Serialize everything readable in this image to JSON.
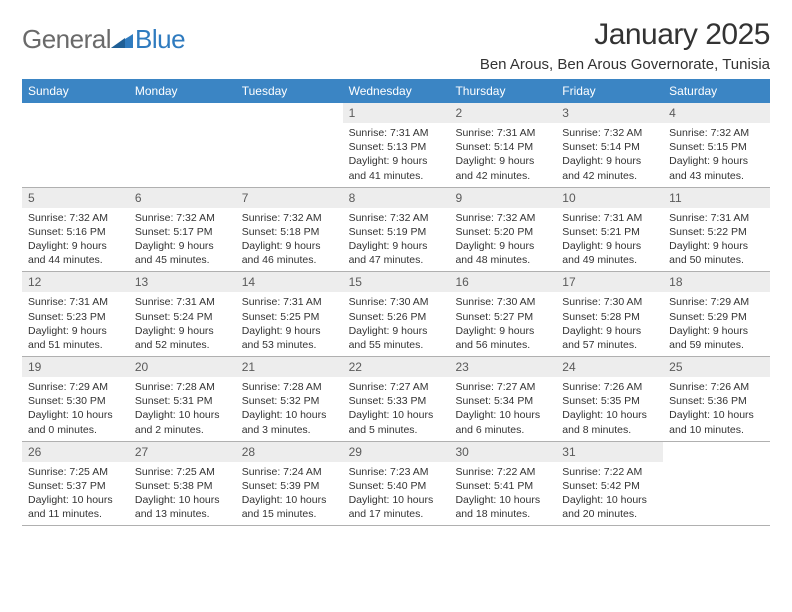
{
  "brand": {
    "part1": "General",
    "part2": "Blue"
  },
  "title": "January 2025",
  "location": "Ben Arous, Ben Arous Governorate, Tunisia",
  "colors": {
    "header_bg": "#3b85c4",
    "header_text": "#ffffff",
    "daynum_bg": "#ededed",
    "daynum_text": "#5a5a5a",
    "body_text": "#333333",
    "rule": "#b0b0b0",
    "logo_gray": "#6a6a6a",
    "logo_blue": "#2f7bbf",
    "page_bg": "#ffffff"
  },
  "typography": {
    "title_fontsize": 30,
    "location_fontsize": 15,
    "dow_fontsize": 12,
    "daynum_fontsize": 12,
    "detail_fontsize": 10.5
  },
  "dow": [
    "Sunday",
    "Monday",
    "Tuesday",
    "Wednesday",
    "Thursday",
    "Friday",
    "Saturday"
  ],
  "weeks": [
    [
      null,
      null,
      null,
      {
        "n": "1",
        "sunrise": "7:31 AM",
        "sunset": "5:13 PM",
        "daylight": "9 hours and 41 minutes."
      },
      {
        "n": "2",
        "sunrise": "7:31 AM",
        "sunset": "5:14 PM",
        "daylight": "9 hours and 42 minutes."
      },
      {
        "n": "3",
        "sunrise": "7:32 AM",
        "sunset": "5:14 PM",
        "daylight": "9 hours and 42 minutes."
      },
      {
        "n": "4",
        "sunrise": "7:32 AM",
        "sunset": "5:15 PM",
        "daylight": "9 hours and 43 minutes."
      }
    ],
    [
      {
        "n": "5",
        "sunrise": "7:32 AM",
        "sunset": "5:16 PM",
        "daylight": "9 hours and 44 minutes."
      },
      {
        "n": "6",
        "sunrise": "7:32 AM",
        "sunset": "5:17 PM",
        "daylight": "9 hours and 45 minutes."
      },
      {
        "n": "7",
        "sunrise": "7:32 AM",
        "sunset": "5:18 PM",
        "daylight": "9 hours and 46 minutes."
      },
      {
        "n": "8",
        "sunrise": "7:32 AM",
        "sunset": "5:19 PM",
        "daylight": "9 hours and 47 minutes."
      },
      {
        "n": "9",
        "sunrise": "7:32 AM",
        "sunset": "5:20 PM",
        "daylight": "9 hours and 48 minutes."
      },
      {
        "n": "10",
        "sunrise": "7:31 AM",
        "sunset": "5:21 PM",
        "daylight": "9 hours and 49 minutes."
      },
      {
        "n": "11",
        "sunrise": "7:31 AM",
        "sunset": "5:22 PM",
        "daylight": "9 hours and 50 minutes."
      }
    ],
    [
      {
        "n": "12",
        "sunrise": "7:31 AM",
        "sunset": "5:23 PM",
        "daylight": "9 hours and 51 minutes."
      },
      {
        "n": "13",
        "sunrise": "7:31 AM",
        "sunset": "5:24 PM",
        "daylight": "9 hours and 52 minutes."
      },
      {
        "n": "14",
        "sunrise": "7:31 AM",
        "sunset": "5:25 PM",
        "daylight": "9 hours and 53 minutes."
      },
      {
        "n": "15",
        "sunrise": "7:30 AM",
        "sunset": "5:26 PM",
        "daylight": "9 hours and 55 minutes."
      },
      {
        "n": "16",
        "sunrise": "7:30 AM",
        "sunset": "5:27 PM",
        "daylight": "9 hours and 56 minutes."
      },
      {
        "n": "17",
        "sunrise": "7:30 AM",
        "sunset": "5:28 PM",
        "daylight": "9 hours and 57 minutes."
      },
      {
        "n": "18",
        "sunrise": "7:29 AM",
        "sunset": "5:29 PM",
        "daylight": "9 hours and 59 minutes."
      }
    ],
    [
      {
        "n": "19",
        "sunrise": "7:29 AM",
        "sunset": "5:30 PM",
        "daylight": "10 hours and 0 minutes."
      },
      {
        "n": "20",
        "sunrise": "7:28 AM",
        "sunset": "5:31 PM",
        "daylight": "10 hours and 2 minutes."
      },
      {
        "n": "21",
        "sunrise": "7:28 AM",
        "sunset": "5:32 PM",
        "daylight": "10 hours and 3 minutes."
      },
      {
        "n": "22",
        "sunrise": "7:27 AM",
        "sunset": "5:33 PM",
        "daylight": "10 hours and 5 minutes."
      },
      {
        "n": "23",
        "sunrise": "7:27 AM",
        "sunset": "5:34 PM",
        "daylight": "10 hours and 6 minutes."
      },
      {
        "n": "24",
        "sunrise": "7:26 AM",
        "sunset": "5:35 PM",
        "daylight": "10 hours and 8 minutes."
      },
      {
        "n": "25",
        "sunrise": "7:26 AM",
        "sunset": "5:36 PM",
        "daylight": "10 hours and 10 minutes."
      }
    ],
    [
      {
        "n": "26",
        "sunrise": "7:25 AM",
        "sunset": "5:37 PM",
        "daylight": "10 hours and 11 minutes."
      },
      {
        "n": "27",
        "sunrise": "7:25 AM",
        "sunset": "5:38 PM",
        "daylight": "10 hours and 13 minutes."
      },
      {
        "n": "28",
        "sunrise": "7:24 AM",
        "sunset": "5:39 PM",
        "daylight": "10 hours and 15 minutes."
      },
      {
        "n": "29",
        "sunrise": "7:23 AM",
        "sunset": "5:40 PM",
        "daylight": "10 hours and 17 minutes."
      },
      {
        "n": "30",
        "sunrise": "7:22 AM",
        "sunset": "5:41 PM",
        "daylight": "10 hours and 18 minutes."
      },
      {
        "n": "31",
        "sunrise": "7:22 AM",
        "sunset": "5:42 PM",
        "daylight": "10 hours and 20 minutes."
      },
      null
    ]
  ],
  "labels": {
    "sunrise": "Sunrise: ",
    "sunset": "Sunset: ",
    "daylight": "Daylight: "
  }
}
